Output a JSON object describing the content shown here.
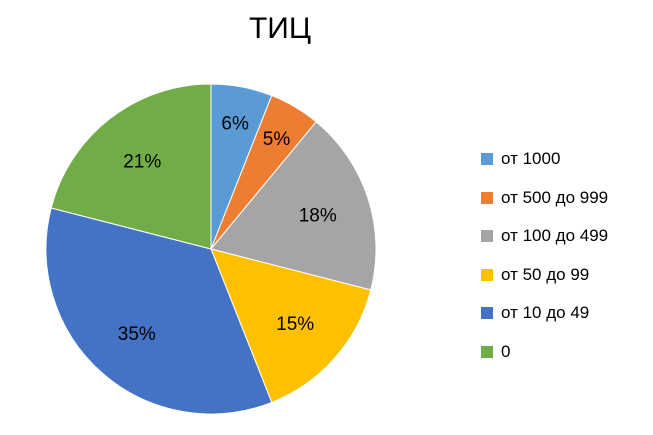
{
  "chart_data": {
    "type": "pie",
    "title": "ТИЦ",
    "slices": [
      {
        "label": "от 1000",
        "value": 6,
        "display": "6%",
        "color": "#5b9bd5"
      },
      {
        "label": "от 500 до 999",
        "value": 5,
        "display": "5%",
        "color": "#ed7d31"
      },
      {
        "label": "от 100 до 499",
        "value": 18,
        "display": "18%",
        "color": "#a5a5a5"
      },
      {
        "label": "от 50 до 99",
        "value": 15,
        "display": "15%",
        "color": "#ffc000"
      },
      {
        "label": "от 10 до 49",
        "value": 35,
        "display": "35%",
        "color": "#4472c4"
      },
      {
        "label": "0",
        "value": 21,
        "display": "21%",
        "color": "#70ad47"
      }
    ],
    "legend_position": "right"
  }
}
